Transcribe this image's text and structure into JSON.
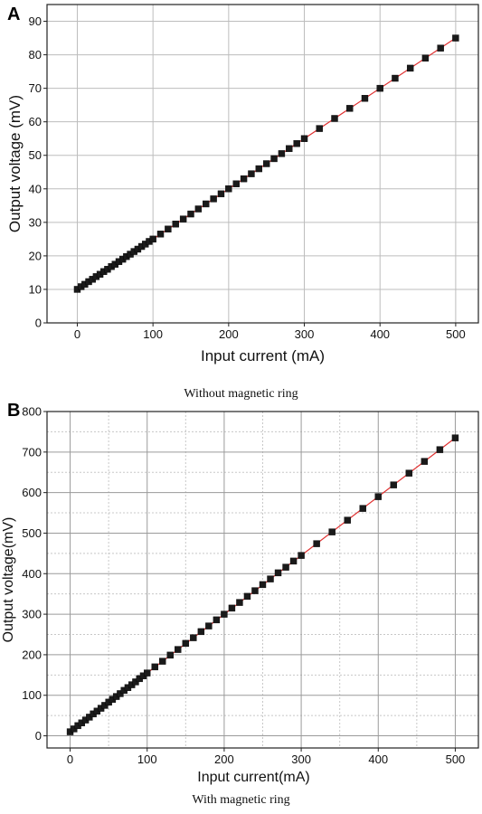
{
  "chart_data": [
    {
      "panel": "A",
      "type": "scatter",
      "caption": "Without magnetic ring",
      "xlabel": "Input current (mA)",
      "ylabel": "Output voltage (mV)",
      "xlim": [
        -40,
        530
      ],
      "ylim": [
        0,
        95
      ],
      "xticks": [
        0,
        100,
        200,
        300,
        400,
        500
      ],
      "yticks": [
        0,
        10,
        20,
        30,
        40,
        50,
        60,
        70,
        80,
        90
      ],
      "grid": "solid",
      "marker_color": "#1a1a1a",
      "line_color": "#e03030",
      "fit": {
        "x0": 0,
        "y0": 10.0,
        "x1": 500,
        "y1": 85.0
      },
      "x": [
        0,
        5,
        10,
        15,
        20,
        25,
        30,
        35,
        40,
        45,
        50,
        55,
        60,
        65,
        70,
        75,
        80,
        85,
        90,
        95,
        100,
        110,
        120,
        130,
        140,
        150,
        160,
        170,
        180,
        190,
        200,
        210,
        220,
        230,
        240,
        250,
        260,
        270,
        280,
        290,
        300,
        320,
        340,
        360,
        380,
        400,
        420,
        440,
        460,
        480,
        500
      ],
      "y": [
        10.0,
        10.8,
        11.5,
        12.3,
        13.0,
        13.8,
        14.5,
        15.3,
        16.0,
        16.8,
        17.5,
        18.3,
        19.0,
        19.8,
        20.5,
        21.3,
        22.0,
        22.8,
        23.5,
        24.3,
        25.0,
        26.5,
        28.0,
        29.5,
        31.0,
        32.5,
        34.0,
        35.5,
        37.0,
        38.5,
        40.0,
        41.5,
        43.0,
        44.5,
        46.0,
        47.5,
        49.0,
        50.5,
        52.0,
        53.5,
        55.0,
        58.0,
        61.0,
        64.0,
        67.0,
        70.0,
        73.0,
        76.0,
        79.0,
        82.0,
        85.0
      ]
    },
    {
      "panel": "B",
      "type": "scatter",
      "caption": "With magnetic ring",
      "xlabel": "Input current(mA)",
      "ylabel": "Output voltage(mV)",
      "xlim": [
        -30,
        530
      ],
      "ylim": [
        -30,
        800
      ],
      "xticks": [
        0,
        100,
        200,
        300,
        400,
        500
      ],
      "yticks": [
        0,
        100,
        200,
        300,
        400,
        500,
        600,
        700,
        800
      ],
      "grid": "solid major, dotted minor",
      "marker_color": "#1a1a1a",
      "line_color": "#e03030",
      "fit": {
        "x0": 0,
        "y0": 10,
        "x1": 500,
        "y1": 735
      },
      "x": [
        0,
        5,
        10,
        15,
        20,
        25,
        30,
        35,
        40,
        45,
        50,
        55,
        60,
        65,
        70,
        75,
        80,
        85,
        90,
        95,
        100,
        110,
        120,
        130,
        140,
        150,
        160,
        170,
        180,
        190,
        200,
        210,
        220,
        230,
        240,
        250,
        260,
        270,
        280,
        290,
        300,
        320,
        340,
        360,
        380,
        400,
        420,
        440,
        460,
        480,
        500
      ],
      "y": [
        10,
        17,
        25,
        32,
        39,
        46,
        54,
        61,
        68,
        75,
        83,
        90,
        97,
        104,
        112,
        119,
        126,
        133,
        141,
        148,
        155,
        170,
        184,
        199,
        213,
        228,
        242,
        257,
        271,
        286,
        300,
        315,
        329,
        344,
        358,
        373,
        387,
        402,
        416,
        431,
        445,
        474,
        503,
        532,
        561,
        590,
        619,
        648,
        677,
        706,
        735
      ]
    }
  ]
}
